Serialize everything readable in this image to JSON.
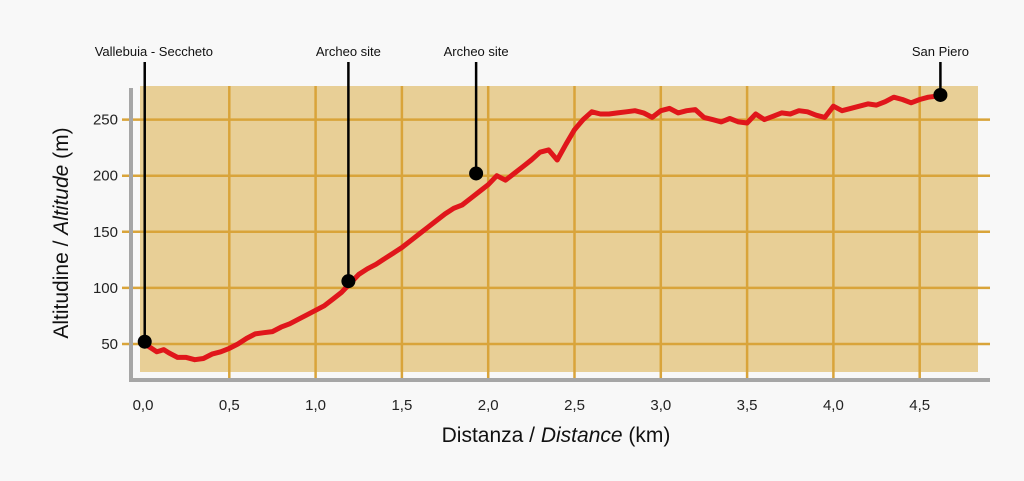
{
  "chart_data": {
    "type": "line",
    "title": "",
    "xlabel": "Distanza / Distance (km)",
    "xlabel_parts": [
      "Distanza / ",
      "Distance",
      " (km)"
    ],
    "ylabel": "Altitudine / Altitude (m)",
    "ylabel_parts": [
      "Altitudine / ",
      "Altitude",
      " (m)"
    ],
    "xlim": [
      0,
      4.85
    ],
    "ylim": [
      25,
      280
    ],
    "x_ticks": [
      0,
      0.5,
      1.0,
      1.5,
      2.0,
      2.5,
      3.0,
      3.5,
      4.0,
      4.5
    ],
    "x_tick_labels": [
      "0,0",
      "0,5",
      "1,0",
      "1,5",
      "2,0",
      "2,5",
      "3,0",
      "3,5",
      "4,0",
      "4,5"
    ],
    "y_ticks": [
      50,
      100,
      150,
      200,
      250
    ],
    "y_tick_labels": [
      "50",
      "100",
      "150",
      "200",
      "250"
    ],
    "grid": true,
    "colors": {
      "plot_background": "#e8cf96",
      "grid": "#d9a43a",
      "line": "#e0161b",
      "axis": "#a6a6a6",
      "marker": "#000000"
    },
    "series": [
      {
        "x": [
          0.01,
          0.05,
          0.08,
          0.1,
          0.12,
          0.15,
          0.2,
          0.25,
          0.3,
          0.35,
          0.4,
          0.45,
          0.5,
          0.55,
          0.6,
          0.65,
          0.7,
          0.75,
          0.8,
          0.85,
          0.9,
          0.95,
          1.0,
          1.05,
          1.1,
          1.15,
          1.2,
          1.25,
          1.3,
          1.35,
          1.4,
          1.45,
          1.5,
          1.55,
          1.6,
          1.65,
          1.7,
          1.75,
          1.8,
          1.85,
          1.9,
          1.95,
          2.0,
          2.05,
          2.1,
          2.15,
          2.2,
          2.25,
          2.3,
          2.35,
          2.4,
          2.45,
          2.5,
          2.55,
          2.6,
          2.65,
          2.7,
          2.75,
          2.8,
          2.85,
          2.9,
          2.95,
          3.0,
          3.05,
          3.1,
          3.15,
          3.2,
          3.25,
          3.3,
          3.35,
          3.4,
          3.45,
          3.5,
          3.55,
          3.6,
          3.65,
          3.7,
          3.75,
          3.8,
          3.85,
          3.9,
          3.95,
          4.0,
          4.05,
          4.1,
          4.15,
          4.2,
          4.25,
          4.3,
          4.35,
          4.4,
          4.45,
          4.5,
          4.55,
          4.6,
          4.62
        ],
        "y": [
          50,
          46,
          43,
          44,
          45,
          42,
          38,
          38,
          36,
          37,
          41,
          43,
          46,
          50,
          55,
          59,
          60,
          61,
          65,
          68,
          72,
          76,
          80,
          84,
          90,
          96,
          104,
          112,
          117,
          121,
          126,
          131,
          136,
          142,
          148,
          154,
          160,
          166,
          171,
          174,
          180,
          186,
          192,
          200,
          196,
          202,
          208,
          214,
          221,
          223,
          214,
          228,
          241,
          250,
          257,
          255,
          255,
          256,
          257,
          258,
          256,
          252,
          258,
          260,
          256,
          258,
          259,
          252,
          250,
          248,
          251,
          248,
          247,
          255,
          250,
          253,
          256,
          255,
          258,
          257,
          254,
          252,
          262,
          258,
          260,
          262,
          264,
          263,
          266,
          270,
          268,
          265,
          268,
          270,
          271,
          271
        ]
      }
    ],
    "annotations": [
      {
        "label": "Vallebuia - Seccheto",
        "x": 0.01,
        "y": 52
      },
      {
        "label": "Archeo site",
        "x": 1.19,
        "y": 106
      },
      {
        "label": "Archeo site",
        "x": 1.93,
        "y": 202
      },
      {
        "label": "San Piero",
        "x": 4.62,
        "y": 272
      }
    ]
  }
}
